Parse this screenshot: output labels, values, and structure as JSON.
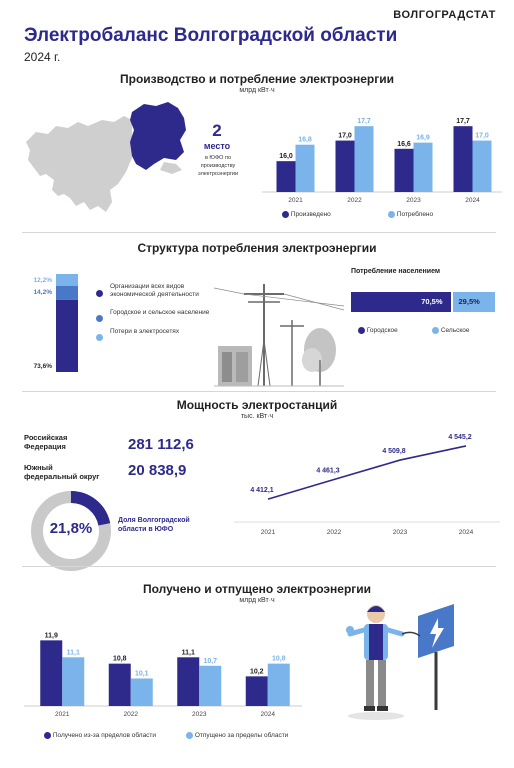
{
  "brand": "ВОЛГОГРАДСТАТ",
  "title": "Электробаланс Волгоградской области",
  "year": "2024 г.",
  "colors": {
    "dark": "#2e2a8c",
    "light": "#7ab4ea",
    "mid": "#4a78c8",
    "gray": "#c9c9c9"
  },
  "section1": {
    "title": "Производство и потребление  электроэнергии",
    "unit": "млрд кВт·ч",
    "rank_number": "2",
    "rank_word": "место",
    "rank_caption": "в ЮФО по производству электроэнергии",
    "legend": {
      "produced": "Произведено",
      "consumed": "Потреблено"
    },
    "chart_data": {
      "type": "bar",
      "categories": [
        "2021",
        "2022",
        "2023",
        "2024"
      ],
      "series": [
        {
          "name": "Произведено",
          "values": [
            16.0,
            17.0,
            16.6,
            17.7
          ],
          "labels": [
            "16,0",
            "17,0",
            "16,6",
            "17,7"
          ]
        },
        {
          "name": "Потреблено",
          "values": [
            16.8,
            17.7,
            16.9,
            17.0
          ],
          "labels": [
            "16,8",
            "17,7",
            "16,9",
            "17,0"
          ]
        }
      ]
    }
  },
  "section2": {
    "title": "Структура потребления электроэнергии",
    "chart_data": {
      "type": "bar",
      "categories": [
        "Организации всех видов экономической деятельности",
        "Городское и сельское население",
        "Потери в электросетях"
      ],
      "values": [
        73.6,
        14.2,
        12.2
      ],
      "labels": [
        "73,6%",
        "14,2%",
        "12,2%"
      ]
    },
    "legend": [
      "Организации всех видов экономической деятельности",
      "Городское и сельское население",
      "Потери в электросетях"
    ],
    "population": {
      "title": "Потребление населением",
      "urban_label": "70,5%",
      "rural_label": "29,5%",
      "urban_value": 70.5,
      "rural_value": 29.5,
      "legend_urban": "Городское",
      "legend_rural": "Сельское"
    }
  },
  "section3": {
    "title": "Мощность электростанций",
    "unit": "тыс. кВт·ч",
    "russia_label": "Российская Федерация",
    "russia_value": "281 112,6",
    "sfd_label": "Южный федеральный округ",
    "sfd_value": "20 838,9",
    "share_value": "21,8%",
    "share_number": 21.8,
    "share_caption": "Доля Волгоградской области в ЮФО",
    "chart_data": {
      "type": "line",
      "x": [
        "2021",
        "2022",
        "2023",
        "2024"
      ],
      "values": [
        4412.1,
        4461.3,
        4509.8,
        4545.2
      ],
      "labels": [
        "4 412,1",
        "4 461,3",
        "4 509,8",
        "4 545,2"
      ]
    }
  },
  "section4": {
    "title": "Получено и отпущено электроэнергии",
    "unit": "млрд кВт·ч",
    "legend": {
      "received": "Получено из-за пределов области",
      "released": "Отпущено за пределы области"
    },
    "chart_data": {
      "type": "bar",
      "categories": [
        "2021",
        "2022",
        "2023",
        "2024"
      ],
      "series": [
        {
          "name": "Получено из-за пределов области",
          "values": [
            11.9,
            10.8,
            11.1,
            10.2
          ],
          "labels": [
            "11,9",
            "10,8",
            "11,1",
            "10,2"
          ]
        },
        {
          "name": "Отпущено за пределы области",
          "values": [
            11.1,
            10.1,
            10.7,
            10.8
          ],
          "labels": [
            "11,1",
            "10,1",
            "10,7",
            "10,8"
          ]
        }
      ]
    }
  }
}
